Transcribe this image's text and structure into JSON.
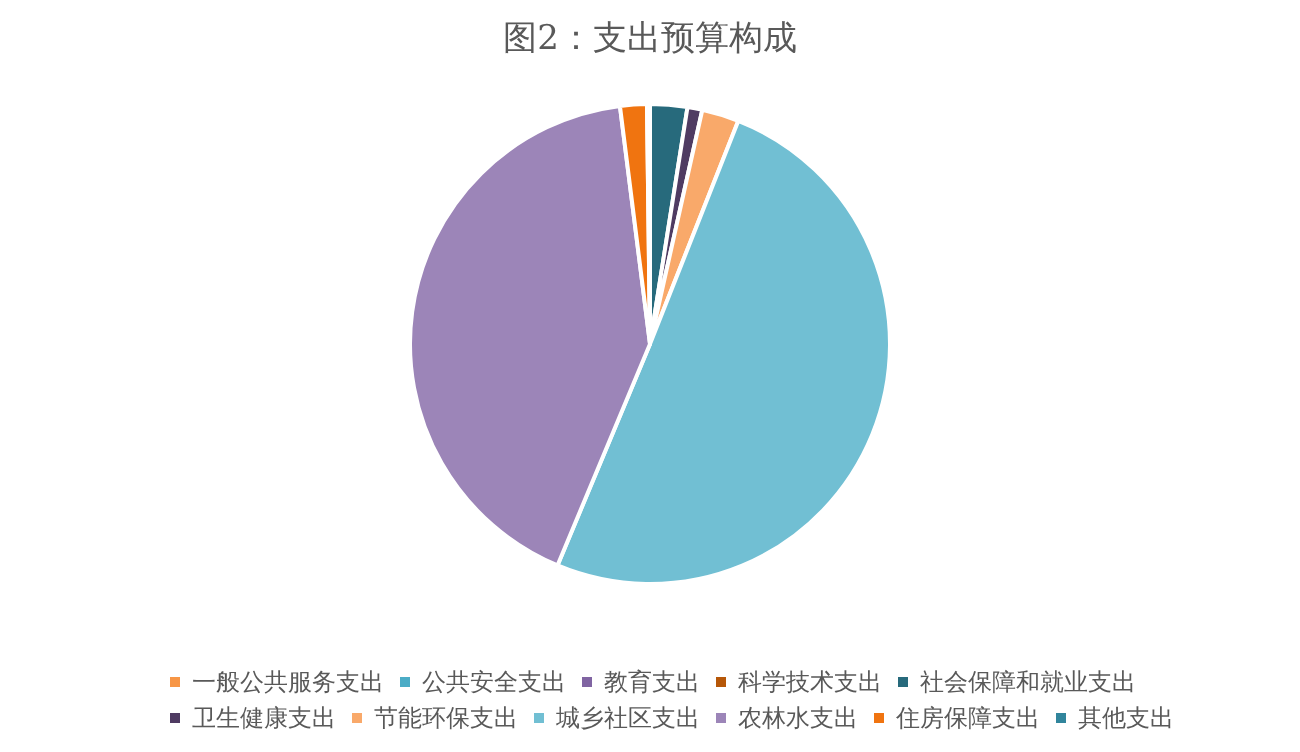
{
  "chart_data": {
    "type": "pie",
    "title": "图2：支出预算构成",
    "legend": "bottom",
    "categories": [
      "一般公共服务支出",
      "公共安全支出",
      "教育支出",
      "科学技术支出",
      "社会保障和就业支出",
      "卫生健康支出",
      "节能环保支出",
      "城乡社区支出",
      "农林水支出",
      "住房保障支出",
      "其他支出"
    ],
    "values": [
      0,
      0,
      0,
      0,
      2.5,
      1,
      2.5,
      50.3,
      41.7,
      1.8,
      0.2
    ],
    "colors": [
      "#f79646",
      "#4bacc6",
      "#8064a2",
      "#b65708",
      "#276a7c",
      "#4f3b62",
      "#f9a96a",
      "#71bfd3",
      "#9c85b8",
      "#f07410",
      "#31859c"
    ]
  }
}
